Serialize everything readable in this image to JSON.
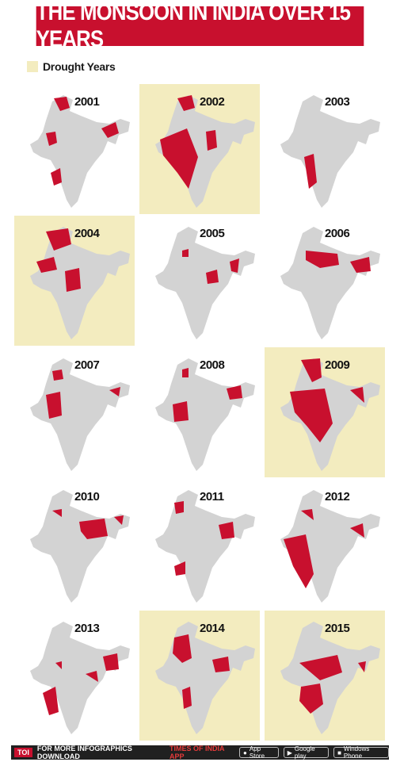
{
  "title": "THE MONSOON IN INDIA OVER 15 YEARS",
  "legend": {
    "label": "Drought Years",
    "color": "#f3ecbf"
  },
  "colors": {
    "banner": "#c8102e",
    "deficit": "#c8102e",
    "map": "#d3d3d3",
    "drought_bg": "#f3ecbf"
  },
  "maps": [
    {
      "year": "2001",
      "drought": false
    },
    {
      "year": "2002",
      "drought": true
    },
    {
      "year": "2003",
      "drought": false
    },
    {
      "year": "2004",
      "drought": true
    },
    {
      "year": "2005",
      "drought": false
    },
    {
      "year": "2006",
      "drought": false
    },
    {
      "year": "2007",
      "drought": false
    },
    {
      "year": "2008",
      "drought": false
    },
    {
      "year": "2009",
      "drought": true
    },
    {
      "year": "2010",
      "drought": false
    },
    {
      "year": "2011",
      "drought": false
    },
    {
      "year": "2012",
      "drought": false
    },
    {
      "year": "2013",
      "drought": false
    },
    {
      "year": "2014",
      "drought": true
    },
    {
      "year": "2015",
      "drought": true
    }
  ],
  "footer": {
    "brand": "TOI",
    "text": "FOR MORE INFOGRAPHICS DOWNLOAD",
    "app": "TIMES OF INDIA APP",
    "store1": "App Store",
    "store2": "Google play",
    "store3": "Windows Phone",
    "store1_icon": "apple-icon",
    "store2_icon": "play-icon",
    "store3_icon": "windows-icon"
  }
}
